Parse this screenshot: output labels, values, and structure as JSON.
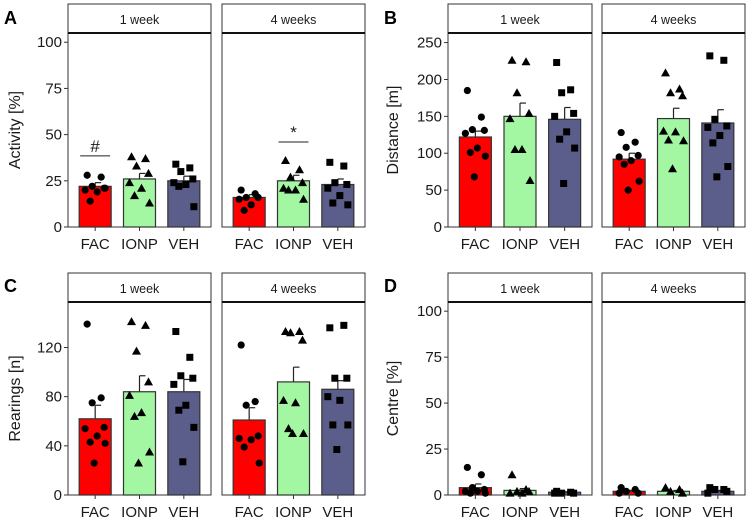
{
  "chart_data": [
    {
      "panel": "A",
      "type": "bar",
      "ylabel": "Activity [%]",
      "ylim": [
        0,
        105
      ],
      "yticks": [
        "0",
        "25",
        "50",
        "75",
        "100"
      ],
      "categories": [
        "FAC",
        "IONP",
        "VEH"
      ],
      "colors": {
        "FAC": "#ff0000",
        "IONP": "#a3f7a3",
        "VEH": "#5b5d8b"
      },
      "facets": [
        {
          "label": "1 week",
          "bars": [
            {
              "group": "FAC",
              "mean": 22,
              "se": 2,
              "points": [
                28,
                27,
                22,
                21,
                20,
                19,
                14,
                21
              ]
            },
            {
              "group": "IONP",
              "mean": 26,
              "se": 3,
              "points": [
                38,
                37,
                33,
                29,
                24,
                21,
                17,
                13
              ]
            },
            {
              "group": "VEH",
              "mean": 25,
              "se": 2.5,
              "points": [
                34,
                32,
                30,
                26,
                24,
                23,
                22,
                11
              ]
            }
          ],
          "annotation": {
            "group": "FAC",
            "text": "#",
            "value": 38.5
          }
        },
        {
          "label": "4 weeks",
          "bars": [
            {
              "group": "FAC",
              "mean": 16,
              "se": 1.5,
              "points": [
                20,
                18,
                16,
                16,
                15,
                12,
                9
              ]
            },
            {
              "group": "IONP",
              "mean": 25,
              "se": 3,
              "points": [
                36,
                31,
                27,
                24,
                21,
                20,
                20,
                15
              ]
            },
            {
              "group": "VEH",
              "mean": 23,
              "se": 3,
              "points": [
                35,
                33,
                24,
                23,
                21,
                17,
                13,
                12
              ]
            }
          ],
          "annotation": {
            "group": "IONP",
            "text": "*",
            "value": 46
          }
        }
      ]
    },
    {
      "panel": "B",
      "type": "bar",
      "ylabel": "Distance [m]",
      "ylim": [
        0,
        263
      ],
      "yticks": [
        "0",
        "50",
        "100",
        "150",
        "200",
        "250"
      ],
      "categories": [
        "FAC",
        "IONP",
        "VEH"
      ],
      "colors": {
        "FAC": "#ff0000",
        "IONP": "#a3f7a3",
        "VEH": "#5b5d8b"
      },
      "facets": [
        {
          "label": "1 week",
          "bars": [
            {
              "group": "FAC",
              "mean": 122,
              "se": 8,
              "points": [
                185,
                149,
                132,
                131,
                127,
                107,
                101,
                96,
                68
              ]
            },
            {
              "group": "IONP",
              "mean": 150,
              "se": 18,
              "points": [
                226,
                224,
                182,
                154,
                147,
                105,
                105,
                63
              ]
            },
            {
              "group": "VEH",
              "mean": 146,
              "se": 16,
              "points": [
                223,
                186,
                182,
                154,
                150,
                129,
                119,
                107,
                59
              ]
            }
          ]
        },
        {
          "label": "4 weeks",
          "bars": [
            {
              "group": "FAC",
              "mean": 92,
              "se": 8,
              "points": [
                128,
                115,
                108,
                97,
                95,
                90,
                85,
                62,
                50
              ]
            },
            {
              "group": "IONP",
              "mean": 147,
              "se": 14,
              "points": [
                209,
                187,
                182,
                178,
                130,
                129,
                118,
                117,
                79
              ]
            },
            {
              "group": "VEH",
              "mean": 141,
              "se": 18,
              "points": [
                232,
                226,
                146,
                137,
                135,
                124,
                114,
                82,
                68
              ]
            }
          ]
        }
      ]
    },
    {
      "panel": "C",
      "type": "bar",
      "ylabel": "Rearings [n]",
      "ylim": [
        0,
        157
      ],
      "yticks": [
        "0",
        "40",
        "80",
        "120"
      ],
      "categories": [
        "FAC",
        "IONP",
        "VEH"
      ],
      "colors": {
        "FAC": "#ff0000",
        "IONP": "#a3f7a3",
        "VEH": "#5b5d8b"
      },
      "facets": [
        {
          "label": "1 week",
          "bars": [
            {
              "group": "FAC",
              "mean": 62,
              "se": 11,
              "points": [
                139,
                79,
                75,
                55,
                54,
                48,
                43,
                42,
                26
              ]
            },
            {
              "group": "IONP",
              "mean": 84,
              "se": 13,
              "points": [
                141,
                138,
                117,
                92,
                81,
                67,
                64,
                35,
                26
              ]
            },
            {
              "group": "VEH",
              "mean": 84,
              "se": 10,
              "points": [
                133,
                112,
                97,
                95,
                90,
                73,
                69,
                55,
                27
              ]
            }
          ]
        },
        {
          "label": "4 weeks",
          "bars": [
            {
              "group": "FAC",
              "mean": 61,
              "se": 10,
              "points": [
                122,
                76,
                73,
                48,
                46,
                45,
                39,
                26
              ]
            },
            {
              "group": "IONP",
              "mean": 92,
              "se": 12,
              "points": [
                133,
                133,
                132,
                126,
                77,
                75,
                54,
                50,
                50
              ]
            },
            {
              "group": "VEH",
              "mean": 86,
              "se": 7,
              "points": [
                136,
                138,
                95,
                95,
                80,
                77,
                57,
                57,
                37
              ]
            }
          ]
        }
      ]
    },
    {
      "panel": "D",
      "type": "bar",
      "ylabel": "Centre [%]",
      "ylim": [
        0,
        105
      ],
      "yticks": [
        "0",
        "25",
        "50",
        "75",
        "100"
      ],
      "categories": [
        "FAC",
        "IONP",
        "VEH"
      ],
      "colors": {
        "FAC": "#ff0000",
        "IONP": "#a3f7a3",
        "VEH": "#5b5d8b"
      },
      "facets": [
        {
          "label": "1 week",
          "bars": [
            {
              "group": "FAC",
              "mean": 4,
              "se": 2,
              "points": [
                15,
                11,
                4,
                3,
                2,
                2,
                1,
                1
              ]
            },
            {
              "group": "IONP",
              "mean": 2.5,
              "se": 1,
              "points": [
                11,
                3,
                2,
                2,
                1,
                1
              ]
            },
            {
              "group": "VEH",
              "mean": 1.5,
              "se": 0.3,
              "points": [
                2,
                1.5,
                1,
                1,
                1
              ]
            }
          ]
        },
        {
          "label": "4 weeks",
          "bars": [
            {
              "group": "FAC",
              "mean": 2,
              "se": 0.5,
              "points": [
                4,
                3,
                2,
                1,
                1
              ]
            },
            {
              "group": "IONP",
              "mean": 2,
              "se": 0.5,
              "points": [
                4,
                3,
                2,
                1
              ]
            },
            {
              "group": "VEH",
              "mean": 2,
              "se": 0.5,
              "points": [
                4,
                3,
                3,
                2,
                1
              ]
            }
          ]
        }
      ]
    }
  ]
}
